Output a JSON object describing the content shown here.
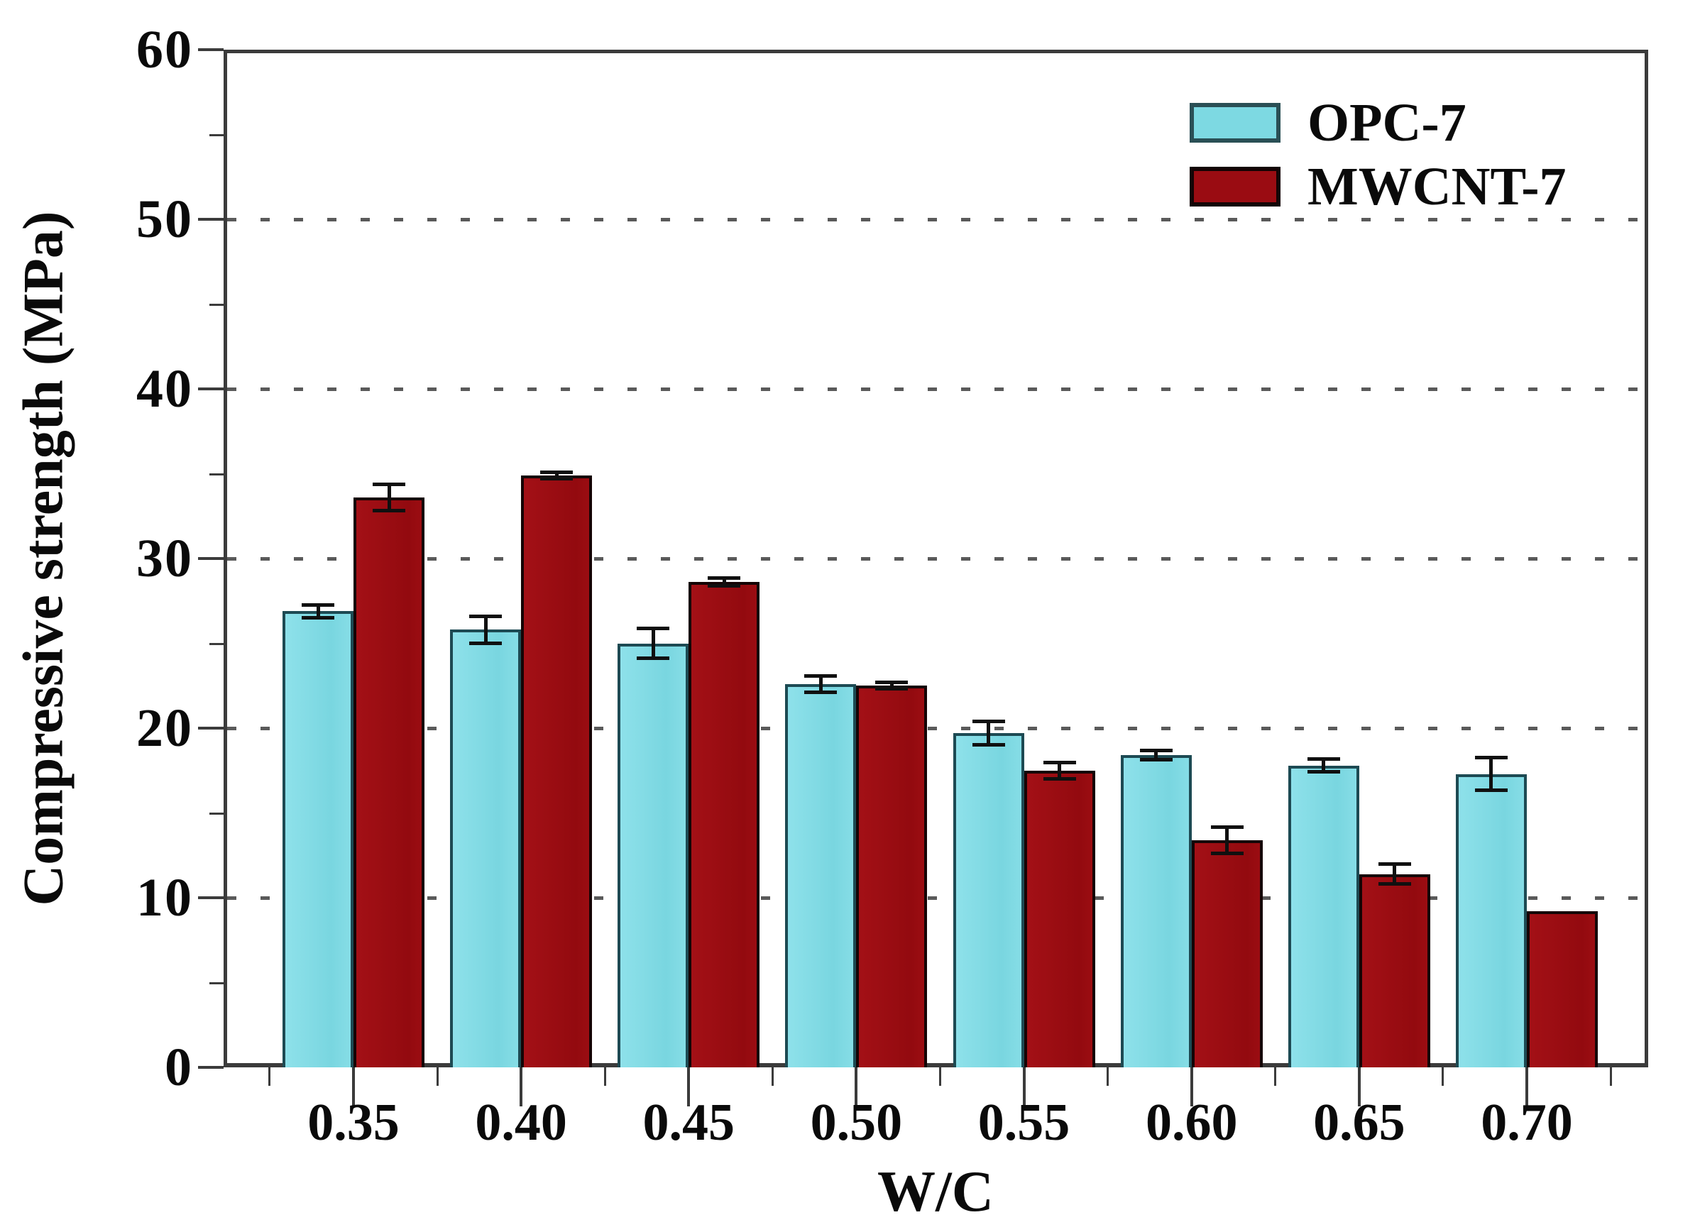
{
  "page": {
    "background": "#ffffff",
    "description": "Grouped bar chart of 7-day compressive strength versus water-cement ratio"
  },
  "colors": {
    "opc_fill": "#7dd9e2",
    "opc_border": "#1d4a53",
    "mwcnt_fill": "#930a0f",
    "mwcnt_border": "#150405",
    "axis": "#3b3b3b",
    "grid": "#5a5a5a",
    "text": "#0a0a0a"
  },
  "chart_data": {
    "type": "bar",
    "title": "",
    "xlabel": "W/C",
    "ylabel": "Compressive strength (MPa)",
    "ylim": [
      0,
      60
    ],
    "y_major_ticks": [
      0,
      10,
      20,
      30,
      40,
      50,
      60
    ],
    "y_major_tick_labels": [
      "0",
      "10",
      "20",
      "30",
      "40",
      "50",
      "60"
    ],
    "y_minor_ticks": [
      5,
      15,
      25,
      35,
      45,
      55
    ],
    "gridlines_at": [
      10,
      20,
      30,
      40,
      50
    ],
    "grid_style": "horizontal dotted",
    "legend_position": "top-right inside plot",
    "categories": [
      "0.35",
      "0.40",
      "0.45",
      "0.50",
      "0.55",
      "0.60",
      "0.65",
      "0.70"
    ],
    "series": [
      {
        "name": "OPC-7",
        "color": "#7dd9e2",
        "values": [
          26.9,
          25.8,
          25.0,
          22.6,
          19.7,
          18.4,
          17.8,
          17.3
        ],
        "errors": [
          0.4,
          0.8,
          0.9,
          0.5,
          0.7,
          0.3,
          0.4,
          1.0
        ]
      },
      {
        "name": "MWCNT-7",
        "color": "#930a0f",
        "values": [
          33.6,
          34.9,
          28.6,
          22.5,
          17.5,
          13.4,
          11.4,
          9.2
        ],
        "errors": [
          0.8,
          0.2,
          0.25,
          0.2,
          0.5,
          0.8,
          0.6,
          0
        ]
      }
    ]
  }
}
